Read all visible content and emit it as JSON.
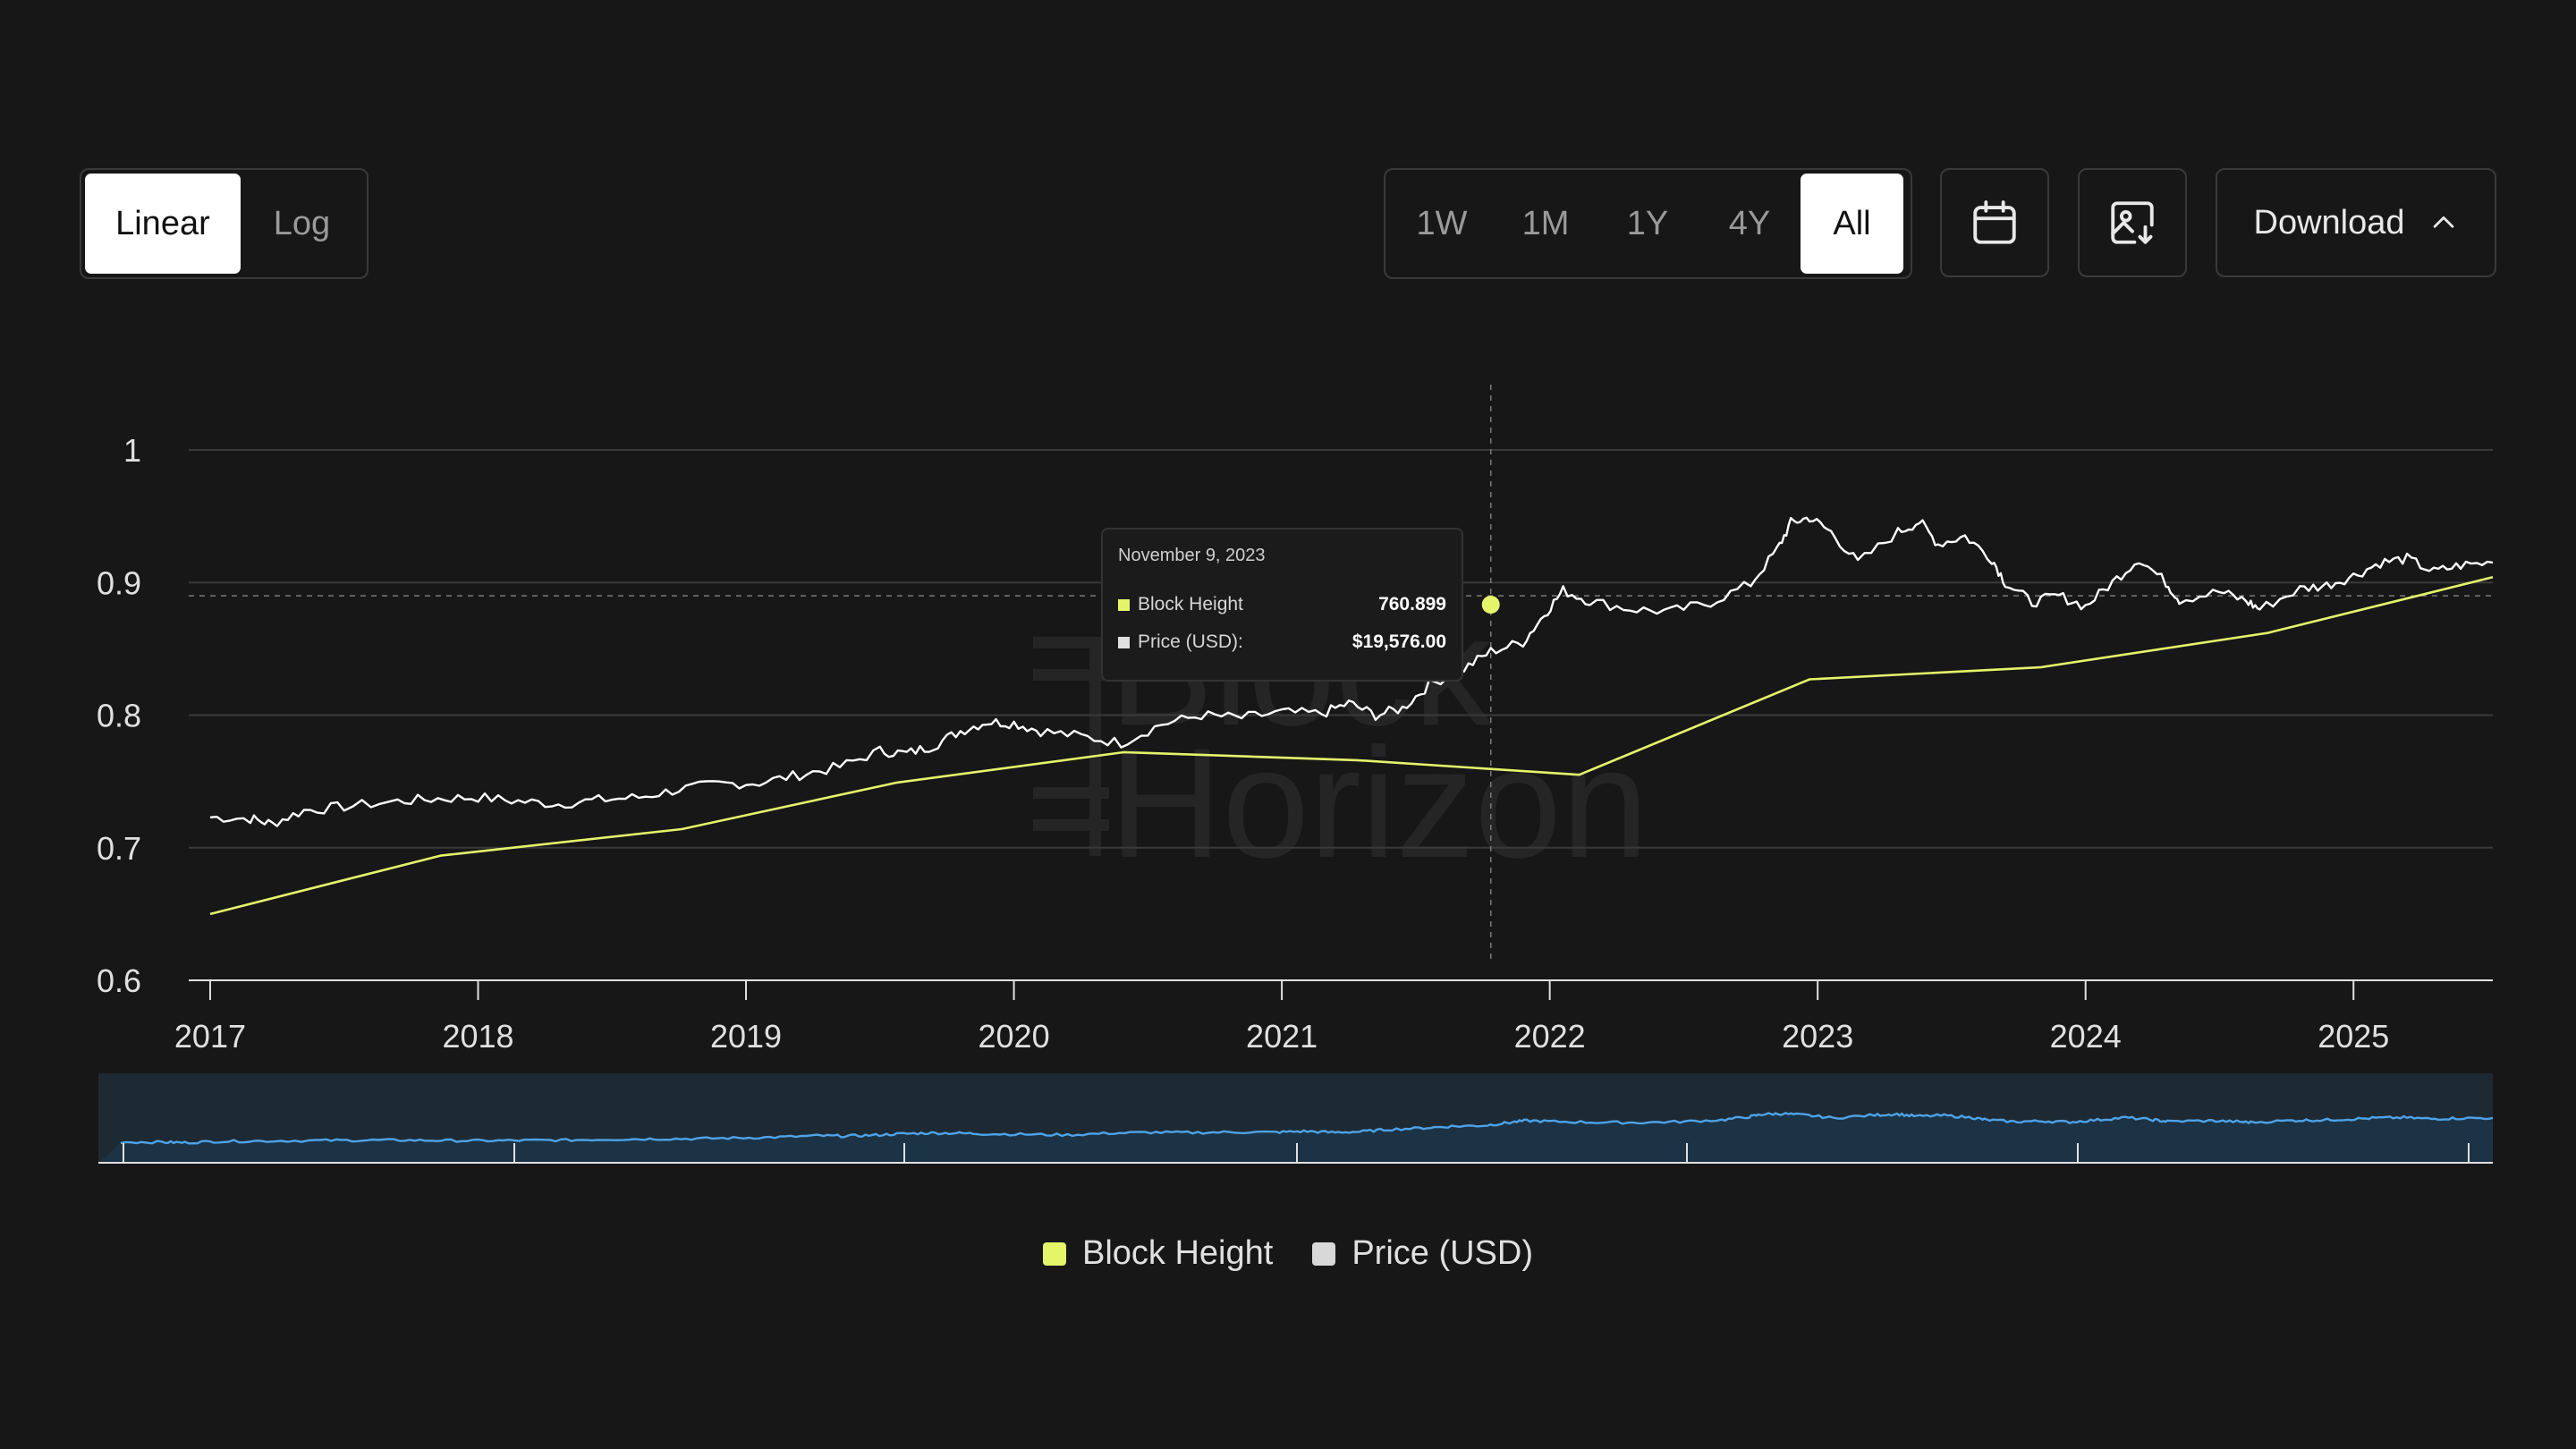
{
  "scale_toggle": {
    "options": [
      "Linear",
      "Log"
    ],
    "selected": "Linear"
  },
  "range_toggle": {
    "options": [
      "1W",
      "1M",
      "1Y",
      "4Y",
      "All"
    ],
    "selected": "All"
  },
  "toolbar": {
    "calendar_icon": "calendar-icon",
    "export_image_icon": "image-download-icon",
    "download_label": "Download",
    "download_chevron_icon": "chevron-up-icon"
  },
  "colors": {
    "background": "#171717",
    "block_height": "#e4f56a",
    "price": "#ffffff",
    "navigator_line": "#4ea3e8",
    "navigator_fill": "#1e2a33",
    "grid": "#3a3a3a"
  },
  "watermark": "Block Horizon",
  "tooltip": {
    "date": "November 9, 2023",
    "rows": [
      {
        "label": "Block Height",
        "value": "760.899"
      },
      {
        "label": "Price (USD):",
        "value": "$19,576.00"
      }
    ]
  },
  "legend": [
    {
      "label": "Block Height"
    },
    {
      "label": "Price (USD)"
    }
  ],
  "chart_data": {
    "type": "line",
    "x_ticks": [
      "2017",
      "2018",
      "2019",
      "2020",
      "2021",
      "2022",
      "2023",
      "2024",
      "2025"
    ],
    "y_ticks": [
      "0.6",
      "0.7",
      "0.8",
      "0.9",
      "1"
    ],
    "ylim": [
      0.6,
      1.0
    ],
    "xlim": [
      2016.92,
      2025.52
    ],
    "grid": true,
    "legend_position": "bottom-center",
    "crosshair": {
      "x": 2021.78,
      "y": 0.89
    },
    "series": [
      {
        "name": "Block Height",
        "color": "#e4f56a",
        "points": [
          [
            2017.0,
            0.65
          ],
          [
            2017.86,
            0.694
          ],
          [
            2018.76,
            0.714
          ],
          [
            2019.56,
            0.749
          ],
          [
            2020.41,
            0.772
          ],
          [
            2021.28,
            0.766
          ],
          [
            2022.11,
            0.755
          ],
          [
            2022.97,
            0.827
          ],
          [
            2023.83,
            0.836
          ],
          [
            2024.68,
            0.862
          ],
          [
            2025.52,
            0.904
          ]
        ]
      },
      {
        "name": "Price (USD)",
        "color": "#ffffff",
        "points": [
          [
            2017.0,
            0.723
          ],
          [
            2017.15,
            0.722
          ],
          [
            2017.23,
            0.718
          ],
          [
            2017.35,
            0.728
          ],
          [
            2017.5,
            0.731
          ],
          [
            2017.7,
            0.735
          ],
          [
            2017.85,
            0.737
          ],
          [
            2018.0,
            0.738
          ],
          [
            2018.15,
            0.735
          ],
          [
            2018.3,
            0.733
          ],
          [
            2018.45,
            0.736
          ],
          [
            2018.6,
            0.738
          ],
          [
            2018.75,
            0.744
          ],
          [
            2018.9,
            0.748
          ],
          [
            2019.05,
            0.749
          ],
          [
            2019.2,
            0.755
          ],
          [
            2019.35,
            0.761
          ],
          [
            2019.5,
            0.773
          ],
          [
            2019.6,
            0.771
          ],
          [
            2019.7,
            0.777
          ],
          [
            2019.8,
            0.788
          ],
          [
            2019.9,
            0.795
          ],
          [
            2020.0,
            0.794
          ],
          [
            2020.1,
            0.788
          ],
          [
            2020.25,
            0.784
          ],
          [
            2020.4,
            0.779
          ],
          [
            2020.55,
            0.793
          ],
          [
            2020.7,
            0.8
          ],
          [
            2020.85,
            0.798
          ],
          [
            2021.0,
            0.802
          ],
          [
            2021.15,
            0.801
          ],
          [
            2021.25,
            0.809
          ],
          [
            2021.35,
            0.8
          ],
          [
            2021.45,
            0.805
          ],
          [
            2021.55,
            0.823
          ],
          [
            2021.68,
            0.835
          ],
          [
            2021.78,
            0.848
          ],
          [
            2021.9,
            0.855
          ],
          [
            2021.98,
            0.876
          ],
          [
            2022.05,
            0.894
          ],
          [
            2022.15,
            0.886
          ],
          [
            2022.3,
            0.88
          ],
          [
            2022.45,
            0.878
          ],
          [
            2022.6,
            0.885
          ],
          [
            2022.75,
            0.899
          ],
          [
            2022.85,
            0.925
          ],
          [
            2022.9,
            0.945
          ],
          [
            2022.97,
            0.949
          ],
          [
            2023.05,
            0.938
          ],
          [
            2023.15,
            0.915
          ],
          [
            2023.3,
            0.938
          ],
          [
            2023.38,
            0.946
          ],
          [
            2023.45,
            0.929
          ],
          [
            2023.55,
            0.935
          ],
          [
            2023.65,
            0.918
          ],
          [
            2023.7,
            0.9
          ],
          [
            2023.8,
            0.885
          ],
          [
            2023.9,
            0.89
          ],
          [
            2024.0,
            0.882
          ],
          [
            2024.1,
            0.9
          ],
          [
            2024.2,
            0.918
          ],
          [
            2024.3,
            0.9
          ],
          [
            2024.35,
            0.887
          ],
          [
            2024.5,
            0.893
          ],
          [
            2024.6,
            0.886
          ],
          [
            2024.65,
            0.88
          ],
          [
            2024.8,
            0.895
          ],
          [
            2024.9,
            0.898
          ],
          [
            2025.0,
            0.905
          ],
          [
            2025.1,
            0.915
          ],
          [
            2025.2,
            0.918
          ],
          [
            2025.3,
            0.908
          ],
          [
            2025.4,
            0.913
          ],
          [
            2025.52,
            0.915
          ]
        ]
      }
    ]
  }
}
